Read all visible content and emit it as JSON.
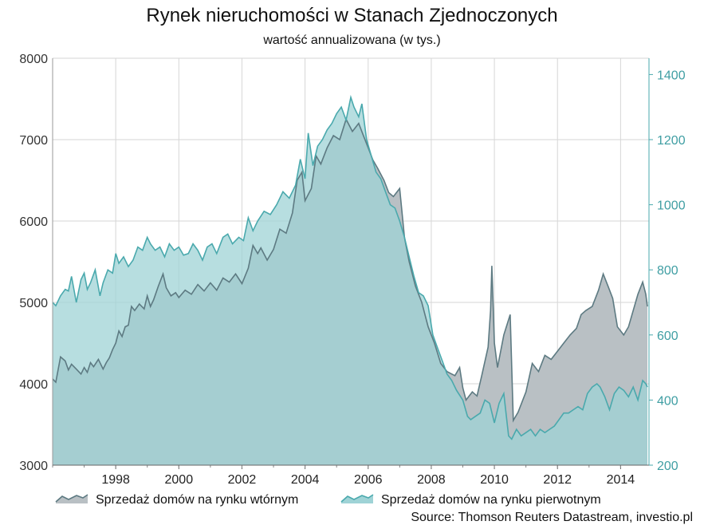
{
  "chart_data": {
    "type": "area",
    "title": "Rynek nieruchomości w Stanach Zjednoczonych",
    "subtitle": "wartość annualizowana (w tys.)",
    "source": "Source: Thomson Reuters Datastream, investio.pl",
    "x_tick_labels": [
      "1998",
      "2000",
      "2002",
      "2004",
      "2006",
      "2008",
      "2010",
      "2012",
      "2014"
    ],
    "x_ticks": [
      1998,
      2000,
      2002,
      2004,
      2006,
      2008,
      2010,
      2012,
      2014
    ],
    "xlim": [
      1996,
      2014.9
    ],
    "y_left": {
      "ylim": [
        3000,
        8000
      ],
      "ticks": [
        3000,
        4000,
        5000,
        6000,
        7000,
        8000
      ],
      "tick_labels": [
        "3000",
        "4000",
        "5000",
        "6000",
        "7000",
        "8000"
      ]
    },
    "y_right": {
      "ylim": [
        200,
        1450
      ],
      "ticks": [
        200,
        400,
        600,
        800,
        1000,
        1200,
        1400
      ],
      "tick_labels": [
        "200",
        "400",
        "600",
        "800",
        "1000",
        "1200",
        "1400"
      ]
    },
    "grid": true,
    "legend_position": "bottom",
    "series": [
      {
        "name": "Sprzedaż domów na rynku wtórnym",
        "axis": "left",
        "color": "#5d7a82",
        "fill": "#b9c0c4",
        "points": [
          [
            1996.0,
            4060
          ],
          [
            1996.1,
            4020
          ],
          [
            1996.25,
            4330
          ],
          [
            1996.4,
            4280
          ],
          [
            1996.5,
            4170
          ],
          [
            1996.6,
            4240
          ],
          [
            1996.75,
            4180
          ],
          [
            1996.9,
            4120
          ],
          [
            1997.0,
            4200
          ],
          [
            1997.1,
            4140
          ],
          [
            1997.2,
            4260
          ],
          [
            1997.3,
            4210
          ],
          [
            1997.45,
            4300
          ],
          [
            1997.6,
            4180
          ],
          [
            1997.7,
            4260
          ],
          [
            1997.8,
            4320
          ],
          [
            1997.9,
            4420
          ],
          [
            1998.0,
            4500
          ],
          [
            1998.1,
            4650
          ],
          [
            1998.2,
            4580
          ],
          [
            1998.3,
            4700
          ],
          [
            1998.4,
            4720
          ],
          [
            1998.5,
            4950
          ],
          [
            1998.6,
            4900
          ],
          [
            1998.75,
            4980
          ],
          [
            1998.9,
            4920
          ],
          [
            1999.0,
            5080
          ],
          [
            1999.1,
            4950
          ],
          [
            1999.2,
            5030
          ],
          [
            1999.35,
            5200
          ],
          [
            1999.5,
            5350
          ],
          [
            1999.6,
            5180
          ],
          [
            1999.75,
            5080
          ],
          [
            1999.9,
            5120
          ],
          [
            2000.0,
            5060
          ],
          [
            2000.2,
            5150
          ],
          [
            2000.4,
            5100
          ],
          [
            2000.6,
            5220
          ],
          [
            2000.8,
            5140
          ],
          [
            2001.0,
            5240
          ],
          [
            2001.2,
            5150
          ],
          [
            2001.4,
            5300
          ],
          [
            2001.6,
            5250
          ],
          [
            2001.8,
            5350
          ],
          [
            2002.0,
            5230
          ],
          [
            2002.2,
            5420
          ],
          [
            2002.35,
            5700
          ],
          [
            2002.5,
            5600
          ],
          [
            2002.6,
            5670
          ],
          [
            2002.8,
            5520
          ],
          [
            2003.0,
            5650
          ],
          [
            2003.2,
            5900
          ],
          [
            2003.4,
            5850
          ],
          [
            2003.6,
            6100
          ],
          [
            2003.75,
            6500
          ],
          [
            2003.9,
            6600
          ],
          [
            2004.0,
            6250
          ],
          [
            2004.2,
            6400
          ],
          [
            2004.35,
            6800
          ],
          [
            2004.5,
            6700
          ],
          [
            2004.7,
            6900
          ],
          [
            2004.9,
            7050
          ],
          [
            2005.1,
            7000
          ],
          [
            2005.3,
            7250
          ],
          [
            2005.5,
            7100
          ],
          [
            2005.7,
            7200
          ],
          [
            2005.85,
            7050
          ],
          [
            2006.0,
            6900
          ],
          [
            2006.15,
            6750
          ],
          [
            2006.3,
            6650
          ],
          [
            2006.5,
            6500
          ],
          [
            2006.65,
            6350
          ],
          [
            2006.8,
            6300
          ],
          [
            2007.0,
            6400
          ],
          [
            2007.15,
            5800
          ],
          [
            2007.3,
            5500
          ],
          [
            2007.5,
            5200
          ],
          [
            2007.7,
            5000
          ],
          [
            2007.9,
            4700
          ],
          [
            2008.1,
            4500
          ],
          [
            2008.3,
            4250
          ],
          [
            2008.5,
            4150
          ],
          [
            2008.75,
            4100
          ],
          [
            2008.9,
            4200
          ],
          [
            2009.0,
            3950
          ],
          [
            2009.1,
            3800
          ],
          [
            2009.3,
            3900
          ],
          [
            2009.45,
            3850
          ],
          [
            2009.6,
            4100
          ],
          [
            2009.8,
            4450
          ],
          [
            2009.88,
            4900
          ],
          [
            2009.92,
            5450
          ],
          [
            2010.0,
            4500
          ],
          [
            2010.1,
            4200
          ],
          [
            2010.3,
            4600
          ],
          [
            2010.5,
            4850
          ],
          [
            2010.6,
            3550
          ],
          [
            2010.75,
            3650
          ],
          [
            2010.9,
            3800
          ],
          [
            2011.0,
            3900
          ],
          [
            2011.2,
            4250
          ],
          [
            2011.4,
            4150
          ],
          [
            2011.6,
            4350
          ],
          [
            2011.8,
            4300
          ],
          [
            2012.0,
            4400
          ],
          [
            2012.2,
            4500
          ],
          [
            2012.4,
            4600
          ],
          [
            2012.6,
            4680
          ],
          [
            2012.75,
            4850
          ],
          [
            2012.9,
            4900
          ],
          [
            2013.1,
            4950
          ],
          [
            2013.3,
            5150
          ],
          [
            2013.45,
            5350
          ],
          [
            2013.6,
            5200
          ],
          [
            2013.75,
            5050
          ],
          [
            2013.9,
            4700
          ],
          [
            2014.1,
            4600
          ],
          [
            2014.25,
            4700
          ],
          [
            2014.4,
            4900
          ],
          [
            2014.55,
            5100
          ],
          [
            2014.7,
            5250
          ],
          [
            2014.8,
            5100
          ],
          [
            2014.85,
            4950
          ]
        ]
      },
      {
        "name": "Sprzedaż domów na rynku pierwotnym",
        "axis": "right",
        "color": "#4aa9ad",
        "fill": "#9fd3d6",
        "points": [
          [
            1996.0,
            700
          ],
          [
            1996.1,
            690
          ],
          [
            1996.25,
            720
          ],
          [
            1996.4,
            740
          ],
          [
            1996.5,
            735
          ],
          [
            1996.6,
            780
          ],
          [
            1996.75,
            700
          ],
          [
            1996.9,
            770
          ],
          [
            1997.0,
            790
          ],
          [
            1997.1,
            740
          ],
          [
            1997.2,
            760
          ],
          [
            1997.35,
            800
          ],
          [
            1997.5,
            720
          ],
          [
            1997.6,
            760
          ],
          [
            1997.75,
            800
          ],
          [
            1997.9,
            790
          ],
          [
            1998.0,
            850
          ],
          [
            1998.1,
            820
          ],
          [
            1998.25,
            840
          ],
          [
            1998.4,
            810
          ],
          [
            1998.55,
            830
          ],
          [
            1998.7,
            870
          ],
          [
            1998.85,
            860
          ],
          [
            1999.0,
            900
          ],
          [
            1999.1,
            880
          ],
          [
            1999.25,
            860
          ],
          [
            1999.4,
            870
          ],
          [
            1999.55,
            840
          ],
          [
            1999.7,
            880
          ],
          [
            1999.85,
            860
          ],
          [
            2000.0,
            870
          ],
          [
            2000.15,
            845
          ],
          [
            2000.3,
            850
          ],
          [
            2000.45,
            880
          ],
          [
            2000.6,
            860
          ],
          [
            2000.75,
            830
          ],
          [
            2000.9,
            870
          ],
          [
            2001.05,
            880
          ],
          [
            2001.2,
            850
          ],
          [
            2001.4,
            900
          ],
          [
            2001.55,
            910
          ],
          [
            2001.7,
            880
          ],
          [
            2001.9,
            900
          ],
          [
            2002.05,
            890
          ],
          [
            2002.2,
            960
          ],
          [
            2002.35,
            920
          ],
          [
            2002.5,
            950
          ],
          [
            2002.7,
            980
          ],
          [
            2002.9,
            970
          ],
          [
            2003.1,
            1000
          ],
          [
            2003.3,
            1040
          ],
          [
            2003.5,
            1020
          ],
          [
            2003.7,
            1060
          ],
          [
            2003.85,
            1140
          ],
          [
            2004.0,
            1080
          ],
          [
            2004.1,
            1220
          ],
          [
            2004.25,
            1120
          ],
          [
            2004.4,
            1180
          ],
          [
            2004.55,
            1200
          ],
          [
            2004.7,
            1230
          ],
          [
            2004.85,
            1250
          ],
          [
            2005.0,
            1280
          ],
          [
            2005.15,
            1300
          ],
          [
            2005.3,
            1260
          ],
          [
            2005.45,
            1330
          ],
          [
            2005.55,
            1300
          ],
          [
            2005.7,
            1270
          ],
          [
            2005.8,
            1310
          ],
          [
            2005.95,
            1200
          ],
          [
            2006.1,
            1150
          ],
          [
            2006.25,
            1100
          ],
          [
            2006.4,
            1080
          ],
          [
            2006.55,
            1040
          ],
          [
            2006.7,
            1000
          ],
          [
            2006.85,
            990
          ],
          [
            2007.0,
            950
          ],
          [
            2007.15,
            900
          ],
          [
            2007.3,
            840
          ],
          [
            2007.45,
            780
          ],
          [
            2007.6,
            730
          ],
          [
            2007.75,
            720
          ],
          [
            2007.9,
            690
          ],
          [
            2008.05,
            600
          ],
          [
            2008.2,
            560
          ],
          [
            2008.35,
            520
          ],
          [
            2008.5,
            480
          ],
          [
            2008.65,
            460
          ],
          [
            2008.8,
            430
          ],
          [
            2009.0,
            400
          ],
          [
            2009.15,
            350
          ],
          [
            2009.25,
            340
          ],
          [
            2009.4,
            350
          ],
          [
            2009.55,
            360
          ],
          [
            2009.7,
            400
          ],
          [
            2009.85,
            390
          ],
          [
            2010.0,
            330
          ],
          [
            2010.15,
            390
          ],
          [
            2010.3,
            420
          ],
          [
            2010.45,
            290
          ],
          [
            2010.55,
            280
          ],
          [
            2010.7,
            310
          ],
          [
            2010.85,
            290
          ],
          [
            2011.0,
            300
          ],
          [
            2011.15,
            310
          ],
          [
            2011.3,
            290
          ],
          [
            2011.45,
            310
          ],
          [
            2011.6,
            300
          ],
          [
            2011.75,
            310
          ],
          [
            2011.9,
            320
          ],
          [
            2012.05,
            340
          ],
          [
            2012.2,
            360
          ],
          [
            2012.35,
            360
          ],
          [
            2012.5,
            370
          ],
          [
            2012.65,
            380
          ],
          [
            2012.8,
            370
          ],
          [
            2012.95,
            420
          ],
          [
            2013.1,
            440
          ],
          [
            2013.25,
            450
          ],
          [
            2013.35,
            440
          ],
          [
            2013.5,
            410
          ],
          [
            2013.65,
            370
          ],
          [
            2013.8,
            420
          ],
          [
            2013.95,
            440
          ],
          [
            2014.1,
            430
          ],
          [
            2014.25,
            410
          ],
          [
            2014.4,
            440
          ],
          [
            2014.55,
            400
          ],
          [
            2014.7,
            460
          ],
          [
            2014.8,
            450
          ],
          [
            2014.85,
            440
          ]
        ]
      }
    ]
  }
}
